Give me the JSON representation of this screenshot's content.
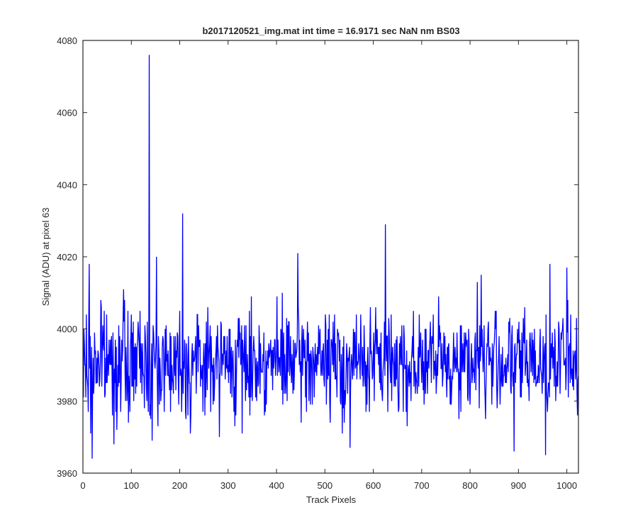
{
  "chart_data": {
    "type": "line",
    "title": "b2017120521_img.mat int time = 16.9171 sec  NaN nm BS03",
    "xlabel": "Track Pixels",
    "ylabel": "Signal (ADU) at pixel 63",
    "xlim": [
      0,
      1024
    ],
    "ylim": [
      3960,
      4080
    ],
    "xticks": [
      0,
      100,
      200,
      300,
      400,
      500,
      600,
      700,
      800,
      900,
      1000
    ],
    "yticks": [
      3960,
      3980,
      4000,
      4020,
      4040,
      4060,
      4080
    ],
    "xtick_labels": [
      "0",
      "100",
      "200",
      "300",
      "400",
      "500",
      "600",
      "700",
      "800",
      "900",
      "1000"
    ],
    "ytick_labels": [
      "3960",
      "3980",
      "4000",
      "4020",
      "4040",
      "4060",
      "4080"
    ],
    "grid": false,
    "series": [
      {
        "color": "#0000ff",
        "noise": {
          "n_points": 1024,
          "base": 3991,
          "spread": 11,
          "min": 3964,
          "max": 4011,
          "seed": 7
        },
        "notable_points": [
          {
            "x": 1,
            "y": 3981
          },
          {
            "x": 11,
            "y": 3977
          },
          {
            "x": 13,
            "y": 4018
          },
          {
            "x": 16,
            "y": 3971
          },
          {
            "x": 19,
            "y": 3964
          },
          {
            "x": 37,
            "y": 4008
          },
          {
            "x": 64,
            "y": 3968
          },
          {
            "x": 84,
            "y": 4011
          },
          {
            "x": 94,
            "y": 3974
          },
          {
            "x": 135,
            "y": 3977
          },
          {
            "x": 137,
            "y": 4076
          },
          {
            "x": 140,
            "y": 3975
          },
          {
            "x": 143,
            "y": 3969
          },
          {
            "x": 152,
            "y": 4020
          },
          {
            "x": 155,
            "y": 3973
          },
          {
            "x": 206,
            "y": 4032
          },
          {
            "x": 212,
            "y": 3977
          },
          {
            "x": 222,
            "y": 3971
          },
          {
            "x": 282,
            "y": 3970
          },
          {
            "x": 329,
            "y": 3971
          },
          {
            "x": 444,
            "y": 4021
          },
          {
            "x": 536,
            "y": 3971
          },
          {
            "x": 552,
            "y": 3967
          },
          {
            "x": 625,
            "y": 4029
          },
          {
            "x": 670,
            "y": 3973
          },
          {
            "x": 815,
            "y": 4013
          },
          {
            "x": 823,
            "y": 4015
          },
          {
            "x": 891,
            "y": 3966
          },
          {
            "x": 956,
            "y": 3965
          },
          {
            "x": 965,
            "y": 4018
          },
          {
            "x": 1000,
            "y": 4017
          },
          {
            "x": 1022,
            "y": 3976
          }
        ]
      }
    ]
  }
}
